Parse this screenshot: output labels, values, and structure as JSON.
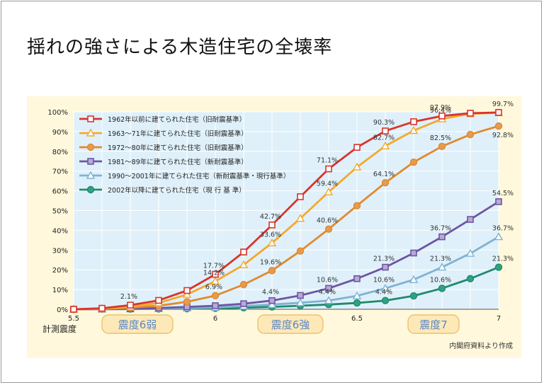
{
  "title": "揺れの強さによる木造住宅の全壊率",
  "source": "内閣府資料より作成",
  "colors": {
    "panel_bg": "#fff8dc",
    "plot_bg": "#dff0fa",
    "grid": "#ffffff",
    "band_text": "#5b87c5",
    "band_fill": "#fde9b8",
    "band_stroke": "#e8b95e"
  },
  "chart_data": {
    "type": "line",
    "xlabel": "計測震度",
    "ylabel": "",
    "xlim": [
      5.5,
      7.0
    ],
    "ylim": [
      0,
      100
    ],
    "x": [
      5.5,
      5.6,
      5.7,
      5.8,
      5.9,
      6.0,
      6.1,
      6.2,
      6.3,
      6.4,
      6.5,
      6.6,
      6.7,
      6.8,
      6.9,
      7.0
    ],
    "x_ticks": [
      {
        "value": 5.5,
        "label": "5.5"
      },
      {
        "value": 6.0,
        "label": "6"
      },
      {
        "value": 6.5,
        "label": "6.5"
      },
      {
        "value": 7.0,
        "label": "7"
      }
    ],
    "y_ticks": [
      {
        "value": 0,
        "label": "0%"
      },
      {
        "value": 10,
        "label": "10%"
      },
      {
        "value": 20,
        "label": "20%"
      },
      {
        "value": 30,
        "label": "30%"
      },
      {
        "value": 40,
        "label": "40%"
      },
      {
        "value": 50,
        "label": "50%"
      },
      {
        "value": 60,
        "label": "60%"
      },
      {
        "value": 70,
        "label": "70%"
      },
      {
        "value": 80,
        "label": "80%"
      },
      {
        "value": 90,
        "label": "90%"
      },
      {
        "value": 100,
        "label": "100%"
      }
    ],
    "bands": [
      {
        "label": "震度6弱",
        "from": 5.6,
        "to": 5.85
      },
      {
        "label": "震度6強",
        "from": 6.15,
        "to": 6.38
      },
      {
        "label": "震度7",
        "from": 6.68,
        "to": 6.86
      }
    ],
    "series": [
      {
        "name": "1962年以前に建てられた住宅（旧耐震基準）",
        "color": "#d9342b",
        "marker": "square",
        "fill": "#ffffff",
        "values": [
          0,
          0.5,
          2.1,
          4.5,
          9.5,
          17.7,
          29,
          42.7,
          57,
          71.1,
          82,
          90.3,
          95,
          97.9,
          99.3,
          99.7
        ],
        "labels": [
          {
            "i": 2,
            "text": "2.1%"
          },
          {
            "i": 5,
            "text": "17.7%"
          },
          {
            "i": 7,
            "text": "42.7%"
          },
          {
            "i": 9,
            "text": "71.1%"
          },
          {
            "i": 11,
            "text": "90.3%"
          },
          {
            "i": 13,
            "text": "97.9%"
          },
          {
            "i": 15,
            "text": "99.7%"
          }
        ]
      },
      {
        "name": "1963～71年に建てられた住宅（旧耐震基準）",
        "color": "#f3a92c",
        "marker": "triangle",
        "fill": "#ffffff",
        "values": [
          0,
          0.3,
          1.2,
          3.2,
          7.5,
          14.2,
          22.5,
          33.6,
          46,
          59.4,
          72,
          82.7,
          90.5,
          96.4,
          99,
          99.5
        ],
        "labels": [
          {
            "i": 5,
            "text": "14.2%"
          },
          {
            "i": 7,
            "text": "33.6%"
          },
          {
            "i": 9,
            "text": "59.4%"
          },
          {
            "i": 11,
            "text": "82.7%"
          },
          {
            "i": 13,
            "text": "96.4%"
          }
        ]
      },
      {
        "name": "1972～80年に建てられた住宅（旧耐震基準）",
        "color": "#e08a2c",
        "marker": "circle",
        "fill": "#e79b50",
        "values": [
          0,
          0.2,
          0.8,
          1.8,
          3.8,
          6.9,
          12.5,
          19.6,
          29.5,
          40.6,
          52.5,
          64.1,
          74.5,
          82.5,
          88.5,
          92.8
        ],
        "labels": [
          {
            "i": 5,
            "text": "6.9%"
          },
          {
            "i": 7,
            "text": "19.6%"
          },
          {
            "i": 9,
            "text": "40.6%"
          },
          {
            "i": 11,
            "text": "64.1%"
          },
          {
            "i": 13,
            "text": "82.5%"
          },
          {
            "i": 15,
            "text": "92.8%"
          }
        ]
      },
      {
        "name": "1981～89年に建てられた住宅（新耐震基準）",
        "color": "#6e55a3",
        "marker": "square",
        "fill": "#b8a9d6",
        "values": [
          0,
          0.1,
          0.3,
          0.6,
          1.2,
          1.8,
          2.8,
          4.4,
          7,
          10.6,
          15.5,
          21.3,
          28.5,
          36.7,
          45.5,
          54.5
        ],
        "labels": [
          {
            "i": 7,
            "text": "4.4%"
          },
          {
            "i": 9,
            "text": "10.6%"
          },
          {
            "i": 11,
            "text": "21.3%"
          },
          {
            "i": 13,
            "text": "36.7%"
          },
          {
            "i": 15,
            "text": "54.5%"
          }
        ]
      },
      {
        "name": "1990～2001年に建てられた住宅（新耐震基準・現行基準）",
        "color": "#7fb2d3",
        "marker": "triangle",
        "fill": "#ffffff",
        "values": [
          0,
          0.05,
          0.15,
          0.3,
          0.6,
          0.9,
          1.6,
          2.4,
          3.3,
          4.4,
          6.8,
          10.6,
          15,
          21.3,
          28.3,
          36.7
        ],
        "labels": [
          {
            "i": 9,
            "text": "4.4%"
          },
          {
            "i": 11,
            "text": "10.6%"
          },
          {
            "i": 13,
            "text": "21.3%"
          },
          {
            "i": 15,
            "text": "36.7%"
          }
        ]
      },
      {
        "name": "2002年以降に建てられた住宅（現 行 基 準）",
        "color": "#1f8a6d",
        "marker": "circle",
        "fill": "#2da383",
        "values": [
          0,
          0.05,
          0.1,
          0.2,
          0.3,
          0.5,
          0.8,
          1.2,
          1.8,
          2.4,
          3.2,
          4.4,
          6.8,
          10.6,
          15.5,
          21.3
        ],
        "labels": [
          {
            "i": 11,
            "text": "4.4%"
          },
          {
            "i": 13,
            "text": "10.6%"
          },
          {
            "i": 15,
            "text": "21.3%"
          }
        ]
      }
    ]
  }
}
